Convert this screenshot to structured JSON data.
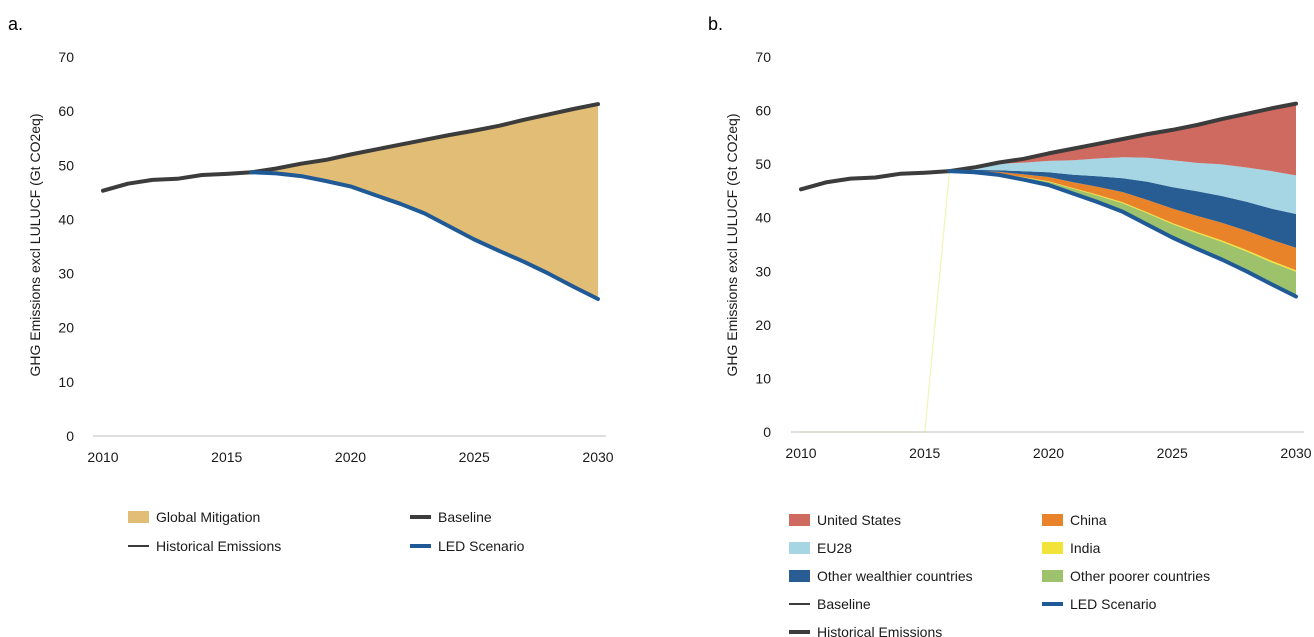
{
  "chart_data": [
    {
      "panel_label": "a.",
      "type": "area",
      "ylabel": "GHG Emissions excl LULUCF (Gt CO2eq)",
      "xlabel": "",
      "xlim": [
        2010,
        2030
      ],
      "ylim": [
        0,
        70
      ],
      "x_ticks": [
        "2010",
        "2015",
        "2020",
        "2025",
        "2030"
      ],
      "y_ticks": [
        "0",
        "10",
        "20",
        "30",
        "40",
        "50",
        "60",
        "70"
      ],
      "grid": false,
      "legend_position": "bottom",
      "series": [
        {
          "key": "global_mitigation",
          "name": "Global Mitigation",
          "kind": "band",
          "color": "#e2bd75",
          "lower": "led",
          "upper": "baseline"
        },
        {
          "key": "baseline",
          "name": "Baseline",
          "kind": "line",
          "color": "#3c3c3c",
          "x": [
            2016,
            2017,
            2018,
            2019,
            2020,
            2021,
            2022,
            2023,
            2024,
            2025,
            2026,
            2027,
            2028,
            2029,
            2030
          ],
          "y": [
            48.7,
            49.4,
            50.3,
            51.0,
            52.0,
            52.9,
            53.8,
            54.7,
            55.6,
            56.4,
            57.3,
            58.4,
            59.4,
            60.4,
            61.3
          ]
        },
        {
          "key": "historical",
          "name": "Historical Emissions",
          "kind": "line",
          "color": "#3c3c3c",
          "x": [
            2010,
            2011,
            2012,
            2013,
            2014,
            2015,
            2016
          ],
          "y": [
            45.3,
            46.6,
            47.3,
            47.5,
            48.2,
            48.4,
            48.7
          ]
        },
        {
          "key": "led",
          "name": "LED Scenario",
          "kind": "line",
          "color": "#1f5a96",
          "x": [
            2016,
            2017,
            2018,
            2019,
            2020,
            2021,
            2022,
            2023,
            2024,
            2025,
            2026,
            2027,
            2028,
            2029,
            2030
          ],
          "y": [
            48.7,
            48.5,
            48.0,
            47.1,
            46.1,
            44.5,
            42.9,
            41.1,
            38.7,
            36.3,
            34.2,
            32.2,
            30.0,
            27.6,
            25.3
          ]
        }
      ],
      "legend": [
        {
          "name": "Global Mitigation",
          "swatch": "box",
          "color": "#e2bd75"
        },
        {
          "name": "Baseline",
          "swatch": "line",
          "color": "#3c3c3c"
        },
        {
          "name": "Historical Emissions",
          "swatch": "thin-line",
          "color": "#3c3c3c"
        },
        {
          "name": "LED Scenario",
          "swatch": "line",
          "color": "#1f5a96"
        }
      ]
    },
    {
      "panel_label": "b.",
      "type": "area",
      "ylabel": "GHG Emissions excl LULUCF (Gt CO2eq)",
      "xlabel": "",
      "xlim": [
        2010,
        2030
      ],
      "ylim": [
        0,
        70
      ],
      "x_ticks": [
        "2010",
        "2015",
        "2020",
        "2025",
        "2030"
      ],
      "y_ticks": [
        "0",
        "10",
        "20",
        "30",
        "40",
        "50",
        "60",
        "70"
      ],
      "grid": false,
      "legend_position": "bottom",
      "x": [
        2016,
        2017,
        2018,
        2019,
        2020,
        2021,
        2022,
        2023,
        2024,
        2025,
        2026,
        2027,
        2028,
        2029,
        2030
      ],
      "stack_base": "led",
      "stack": [
        {
          "key": "other_poorer",
          "name": "Other poorer countries",
          "color": "#9dc26b",
          "values": [
            0,
            0.1,
            0.2,
            0.4,
            0.6,
            0.9,
            1.2,
            1.6,
            2.1,
            2.5,
            2.9,
            3.3,
            3.7,
            4.1,
            4.6
          ]
        },
        {
          "key": "india",
          "name": "India",
          "color": "#f2e33a",
          "values": [
            0,
            0.02,
            0.05,
            0.08,
            0.1,
            0.12,
            0.15,
            0.18,
            0.2,
            0.22,
            0.24,
            0.26,
            0.28,
            0.3,
            0.3
          ]
        },
        {
          "key": "china",
          "name": "China",
          "color": "#e9832a",
          "values": [
            0,
            0.1,
            0.3,
            0.5,
            0.8,
            1.1,
            1.5,
            1.9,
            2.3,
            2.7,
            3.0,
            3.3,
            3.6,
            3.9,
            4.2
          ]
        },
        {
          "key": "other_wealthier",
          "name": "Other wealthier countries",
          "color": "#275d92",
          "values": [
            0,
            0.2,
            0.3,
            0.6,
            0.9,
            1.4,
            2.0,
            2.6,
            3.4,
            4.0,
            4.6,
            5.0,
            5.4,
            5.8,
            6.3
          ]
        },
        {
          "key": "eu28",
          "name": "EU28",
          "color": "#a6d5e4",
          "values": [
            0,
            0.6,
            1.2,
            1.6,
            2.1,
            2.7,
            3.3,
            3.9,
            4.5,
            5.0,
            5.3,
            5.9,
            6.4,
            7.0,
            7.2
          ]
        },
        {
          "key": "united_states",
          "name": "United States",
          "color": "#cf6a60",
          "values": [
            0,
            0,
            0.5,
            0.7,
            1.5,
            2.2,
            2.7,
            3.4,
            4.4,
            5.7,
            6.9,
            8.4,
            10.0,
            11.7,
            13.4
          ]
        }
      ],
      "series": [
        {
          "key": "baseline",
          "name": "Baseline",
          "kind": "line",
          "color": "#3c3c3c",
          "x": [
            2016,
            2017,
            2018,
            2019,
            2020,
            2021,
            2022,
            2023,
            2024,
            2025,
            2026,
            2027,
            2028,
            2029,
            2030
          ],
          "y": [
            48.7,
            49.4,
            50.3,
            51.0,
            52.0,
            52.9,
            53.8,
            54.7,
            55.6,
            56.4,
            57.3,
            58.4,
            59.4,
            60.4,
            61.3
          ]
        },
        {
          "key": "historical",
          "name": "Historical Emissions",
          "kind": "line",
          "color": "#3c3c3c",
          "x": [
            2010,
            2011,
            2012,
            2013,
            2014,
            2015,
            2016
          ],
          "y": [
            45.3,
            46.6,
            47.3,
            47.5,
            48.2,
            48.4,
            48.7
          ]
        },
        {
          "key": "led",
          "name": "LED Scenario",
          "kind": "line",
          "color": "#1f5a96",
          "x": [
            2016,
            2017,
            2018,
            2019,
            2020,
            2021,
            2022,
            2023,
            2024,
            2025,
            2026,
            2027,
            2028,
            2029,
            2030
          ],
          "y": [
            48.7,
            48.5,
            48.0,
            47.1,
            46.1,
            44.5,
            42.9,
            41.1,
            38.7,
            36.3,
            34.2,
            32.2,
            30.0,
            27.6,
            25.3
          ]
        },
        {
          "key": "india_artifact",
          "name": "",
          "kind": "artifact",
          "color": "#f1f3b8",
          "x": [
            2010,
            2015,
            2016
          ],
          "y": [
            0,
            0,
            48.7
          ]
        }
      ],
      "legend": [
        {
          "name": "United States",
          "swatch": "box",
          "color": "#cf6a60"
        },
        {
          "name": "China",
          "swatch": "box",
          "color": "#e9832a"
        },
        {
          "name": "EU28",
          "swatch": "box",
          "color": "#a6d5e4"
        },
        {
          "name": "India",
          "swatch": "box",
          "color": "#f2e33a"
        },
        {
          "name": "Other wealthier countries",
          "swatch": "box",
          "color": "#275d92"
        },
        {
          "name": "Other poorer countries",
          "swatch": "box",
          "color": "#9dc26b"
        },
        {
          "name": "Baseline",
          "swatch": "thin-line",
          "color": "#3c3c3c"
        },
        {
          "name": "LED Scenario",
          "swatch": "line",
          "color": "#1f5a96"
        },
        {
          "name": "Historical Emissions",
          "swatch": "line",
          "color": "#3c3c3c"
        }
      ]
    }
  ]
}
